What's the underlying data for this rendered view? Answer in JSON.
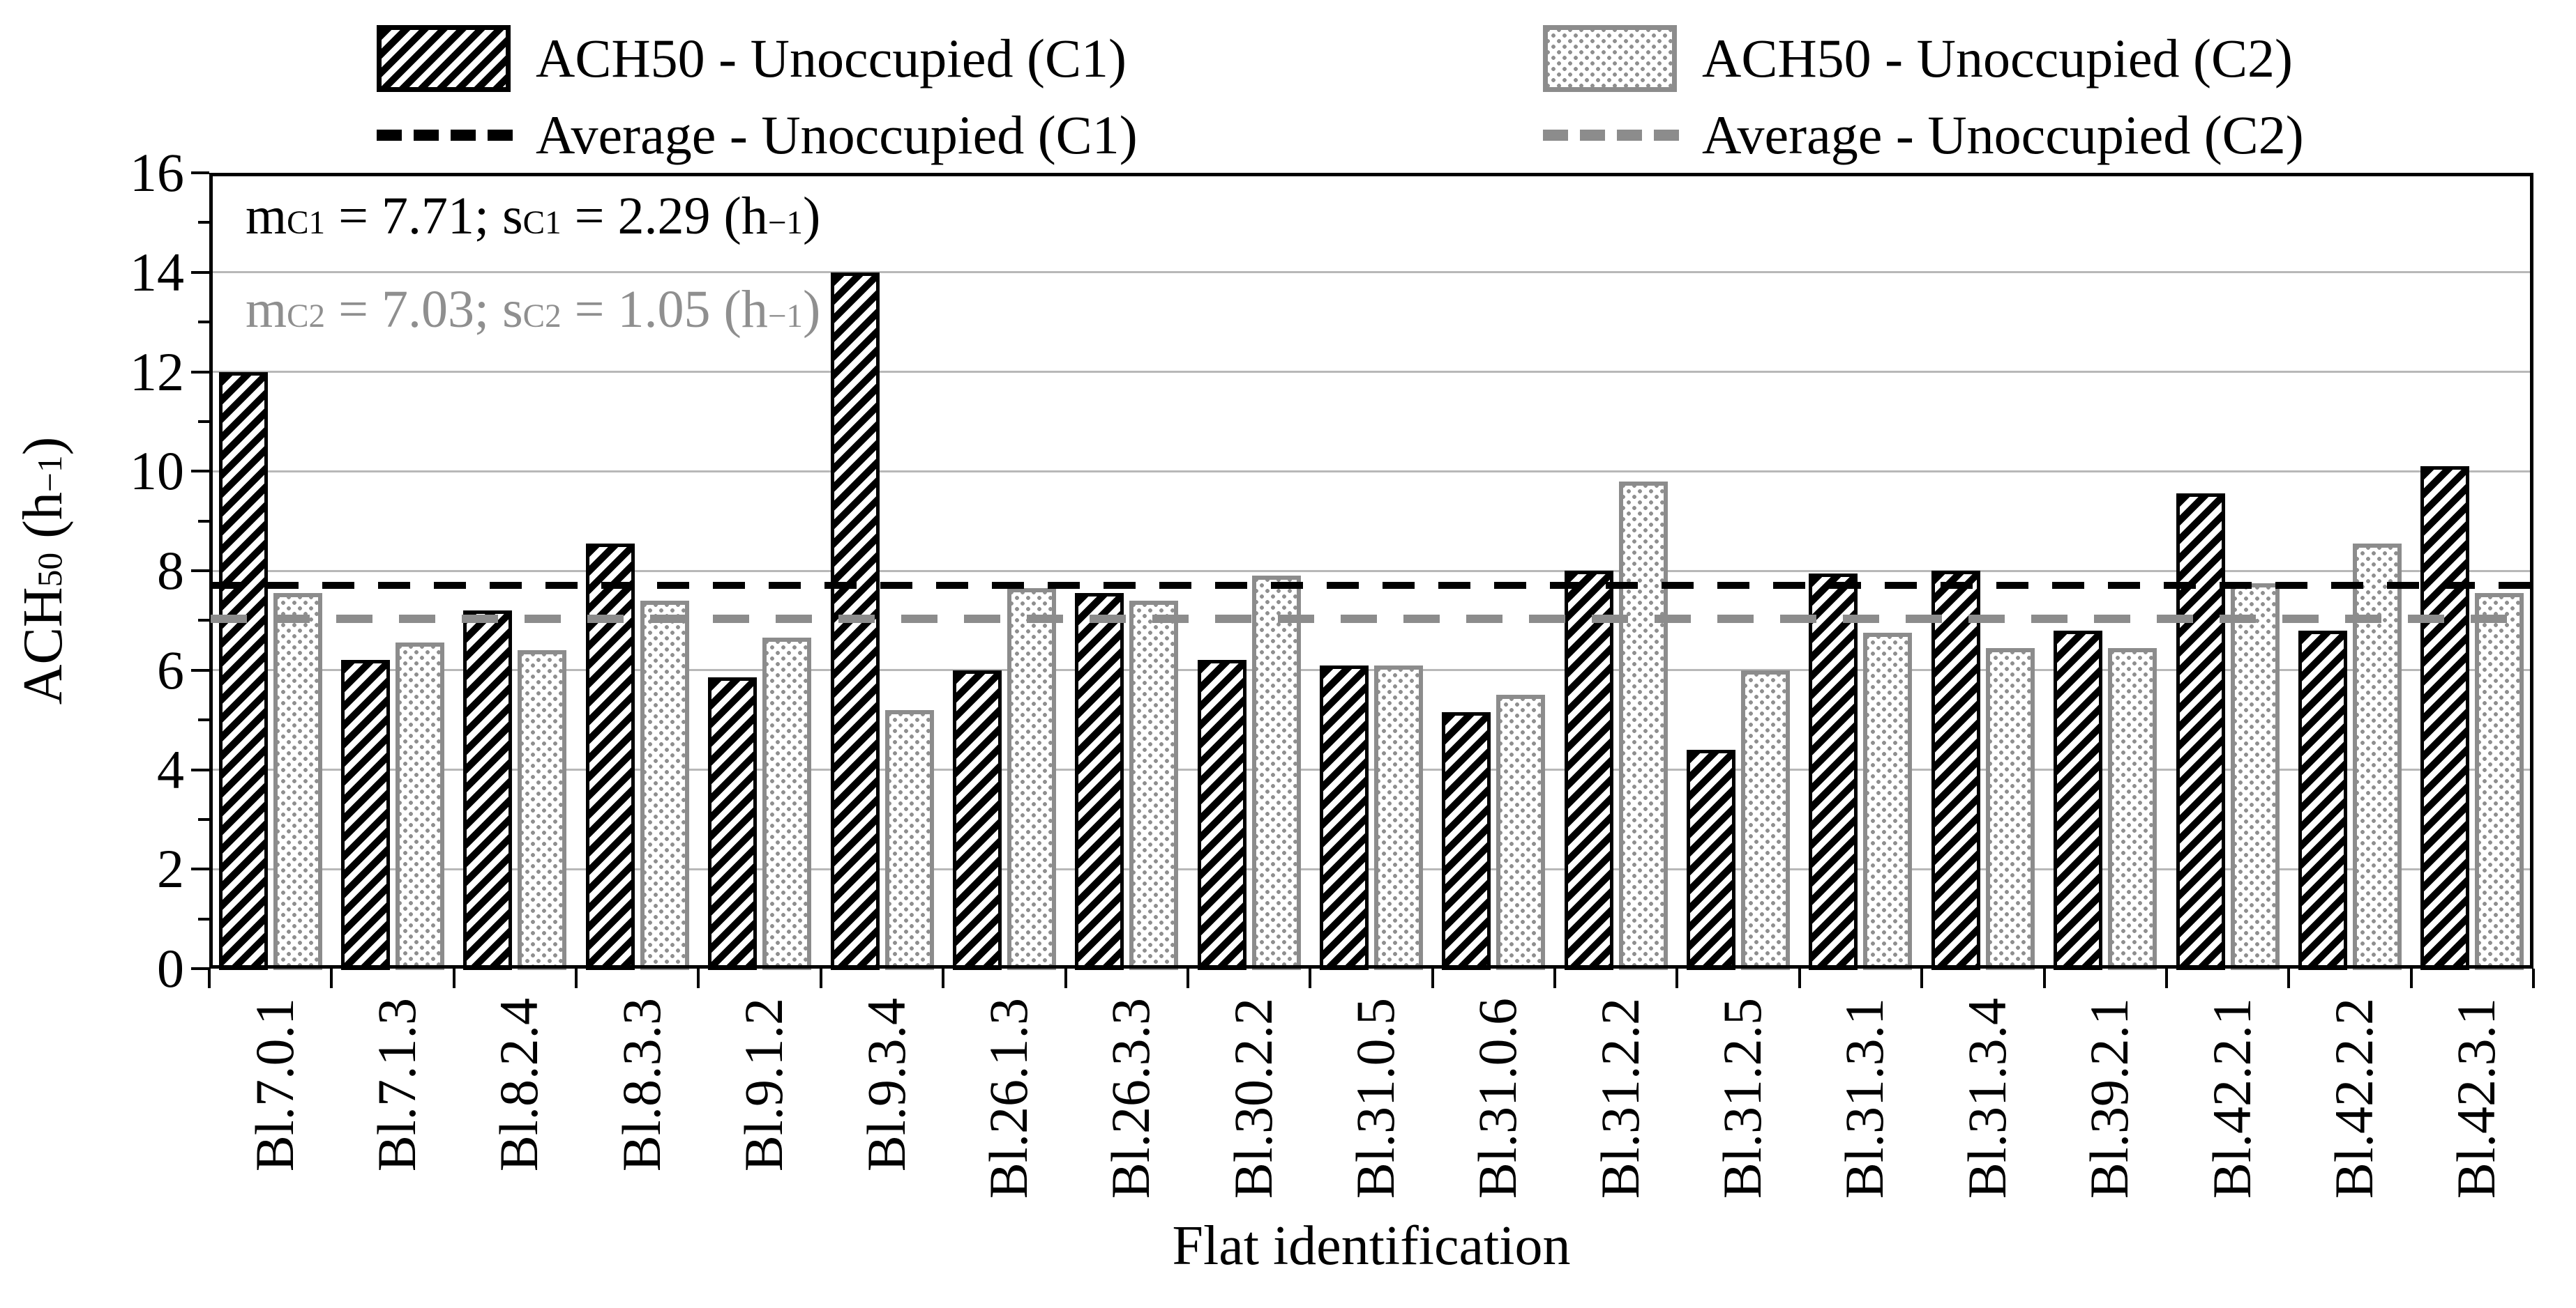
{
  "chart_data": {
    "type": "bar",
    "title": "",
    "categories": [
      "Bl.7.0.1",
      "Bl.7.1.3",
      "Bl.8.2.4",
      "Bl.8.3.3",
      "Bl.9.1.2",
      "Bl.9.3.4",
      "Bl.26.1.3",
      "Bl.26.3.3",
      "Bl.30.2.2",
      "Bl.31.0.5",
      "Bl.31.0.6",
      "Bl.31.2.2",
      "Bl.31.2.5",
      "Bl.31.3.1",
      "Bl.31.3.4",
      "Bl.39.2.1",
      "Bl.42.2.1",
      "Bl.42.2.2",
      "Bl.42.3.1"
    ],
    "series": [
      {
        "name": "ACH50 - Unoccupied (C1)",
        "pattern": "diagonal-hatch",
        "color": "#000000",
        "average": 7.71,
        "values": [
          12.0,
          6.2,
          7.2,
          8.55,
          5.85,
          14.0,
          6.0,
          7.55,
          6.2,
          6.1,
          5.15,
          8.0,
          4.4,
          7.95,
          8.0,
          6.8,
          9.55,
          6.8,
          10.1
        ]
      },
      {
        "name": "ACH50 - Unoccupied (C2)",
        "pattern": "dot-grid",
        "color": "#8c8c8c",
        "average": 7.03,
        "values": [
          7.55,
          6.55,
          6.4,
          7.4,
          6.65,
          5.2,
          7.65,
          7.4,
          7.9,
          6.1,
          5.5,
          9.8,
          6.0,
          6.75,
          6.45,
          6.45,
          7.75,
          8.55,
          7.55
        ]
      }
    ],
    "average_lines": [
      {
        "label": "Average - Unoccupied (C1)",
        "value": 7.71,
        "style": "dashed",
        "color": "#000000"
      },
      {
        "label": "Average - Unoccupied (C2)",
        "value": 7.03,
        "style": "dashed",
        "color": "#8c8c8c"
      }
    ],
    "legend_items": [
      {
        "label": "ACH50 - Unoccupied (C1)",
        "swatch": "hatch-black"
      },
      {
        "label": "Average - Unoccupied (C1)",
        "swatch": "dash-black"
      },
      {
        "label": "ACH50 - Unoccupied (C2)",
        "swatch": "dots-gray"
      },
      {
        "label": "Average - Unoccupied (C2)",
        "swatch": "dash-gray"
      }
    ],
    "annotations": [
      {
        "text": "mC1 = 7.71; sC1 = 2.29 (h⁻¹)",
        "color": "#000000",
        "segments": [
          {
            "t": "m"
          },
          {
            "t": "C1",
            "v": "sub"
          },
          {
            "t": " = 7.71; s"
          },
          {
            "t": "C1",
            "v": "sub"
          },
          {
            "t": " = 2.29 (h"
          },
          {
            "t": "−1",
            "v": "sup"
          },
          {
            "t": ")"
          }
        ]
      },
      {
        "text": "mC2 = 7.03; sC2 = 1.05 (h⁻¹)",
        "color": "#8f8f8f",
        "segments": [
          {
            "t": "m"
          },
          {
            "t": "C2",
            "v": "sub"
          },
          {
            "t": " = 7.03; s"
          },
          {
            "t": "C2",
            "v": "sub"
          },
          {
            "t": " = 1.05 (h"
          },
          {
            "t": "−1",
            "v": "sup"
          },
          {
            "t": ")"
          }
        ]
      }
    ],
    "xlabel": "Flat identification",
    "ylabel": "ACH50 (h⁻¹)",
    "ylabel_segments": [
      {
        "t": "ACH"
      },
      {
        "t": "50",
        "v": "sub"
      },
      {
        "t": " (h"
      },
      {
        "t": "−1",
        "v": "sup"
      },
      {
        "t": ")"
      }
    ],
    "ylim": [
      0,
      16
    ],
    "yticks": [
      0,
      2,
      4,
      6,
      8,
      10,
      12,
      14,
      16
    ],
    "grid": "horizontal-major",
    "legend_position": "top"
  },
  "colors": {
    "series_c1": "#000000",
    "series_c2": "#8c8c8c",
    "gridline": "#b8b8b8",
    "annotation_c2_text": "#8f8f8f",
    "background": "#ffffff"
  }
}
